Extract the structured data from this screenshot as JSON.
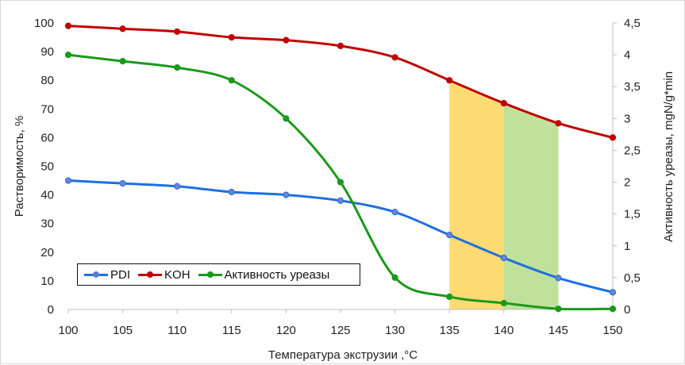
{
  "chart_data": {
    "type": "line",
    "xlabel": "Температура экструзии ,°С",
    "ylabel_left": "Растворимость, %",
    "ylabel_right": "Активность уреазы, mgN/g*min",
    "x": [
      100,
      105,
      110,
      115,
      120,
      125,
      130,
      135,
      140,
      145,
      150
    ],
    "x_ticks": [
      "100",
      "105",
      "110",
      "115",
      "120",
      "125",
      "130",
      "135",
      "140",
      "145",
      "150"
    ],
    "xlim": [
      100,
      150
    ],
    "ylim_left": [
      0,
      100
    ],
    "ylim_right": [
      0,
      4.5
    ],
    "y_ticks_left": [
      "0",
      "10",
      "20",
      "30",
      "40",
      "50",
      "60",
      "70",
      "80",
      "90",
      "100"
    ],
    "y_ticks_right": [
      "0",
      "0,5",
      "1",
      "1,5",
      "2",
      "2,5",
      "3",
      "3,5",
      "4",
      "4,5"
    ],
    "series": [
      {
        "name": "PDI",
        "axis": "left",
        "color": "#1f6fe0",
        "x": [
          100,
          105,
          110,
          115,
          120,
          125,
          130,
          135,
          140,
          145,
          150
        ],
        "values": [
          45,
          44,
          43,
          41,
          40,
          38,
          34,
          26,
          18,
          11,
          6
        ]
      },
      {
        "name": "KOH",
        "axis": "left",
        "color": "#c00000",
        "x": [
          100,
          105,
          110,
          115,
          120,
          125,
          130,
          135,
          140,
          145,
          150
        ],
        "values": [
          99,
          98,
          97,
          95,
          94,
          92,
          88,
          80,
          72,
          65,
          60
        ]
      },
      {
        "name": "Активность уреазы",
        "axis": "right",
        "color": "#1a9a1a",
        "x": [
          100,
          105,
          110,
          115,
          120,
          125,
          130,
          135,
          140,
          145,
          150
        ],
        "values": [
          4.0,
          3.9,
          3.8,
          3.6,
          3.0,
          2.0,
          0.5,
          0.2,
          0.1,
          0.01,
          0.01
        ]
      }
    ],
    "highlight_bands": [
      {
        "x": [
          135,
          140
        ],
        "color": "#ffd55a"
      },
      {
        "x": [
          140,
          145
        ],
        "color": "#b5dc8a"
      }
    ],
    "grid": false,
    "legend_position": "bottom-left"
  }
}
